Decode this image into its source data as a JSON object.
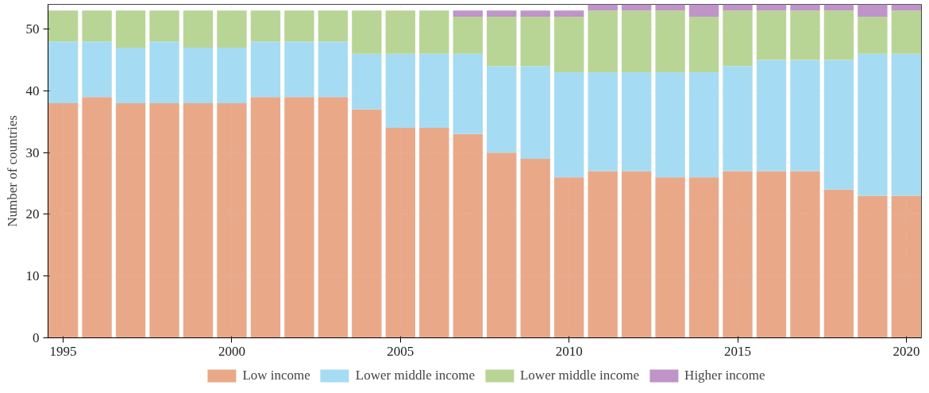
{
  "chart_data": {
    "type": "bar",
    "stacked": true,
    "ylabel": "Number of countries",
    "x": [
      1995,
      1996,
      1997,
      1998,
      1999,
      2000,
      2001,
      2002,
      2003,
      2004,
      2005,
      2006,
      2007,
      2008,
      2009,
      2010,
      2011,
      2012,
      2013,
      2014,
      2015,
      2016,
      2017,
      2018,
      2019,
      2020
    ],
    "series": [
      {
        "name": "Low income",
        "color": "#e9a989",
        "values": [
          38,
          39,
          38,
          38,
          38,
          38,
          39,
          39,
          39,
          37,
          34,
          34,
          33,
          30,
          29,
          26,
          27,
          27,
          26,
          26,
          27,
          27,
          27,
          24,
          23,
          23
        ]
      },
      {
        "name": "Lower middle income",
        "color": "#a6dcf3",
        "values": [
          10,
          9,
          9,
          10,
          9,
          9,
          9,
          9,
          9,
          9,
          12,
          12,
          13,
          14,
          15,
          17,
          16,
          16,
          17,
          17,
          17,
          18,
          18,
          21,
          23,
          23
        ]
      },
      {
        "name": "Lower middle income",
        "color": "#b9d595",
        "values": [
          5,
          5,
          6,
          5,
          6,
          6,
          5,
          5,
          5,
          7,
          7,
          7,
          6,
          8,
          8,
          9,
          10,
          10,
          10,
          9,
          9,
          8,
          8,
          8,
          6,
          7
        ]
      },
      {
        "name": "Higher income",
        "color": "#bf94c9",
        "values": [
          0,
          0,
          0,
          0,
          0,
          0,
          0,
          0,
          0,
          0,
          0,
          0,
          1,
          1,
          1,
          1,
          1,
          1,
          1,
          2,
          1,
          1,
          1,
          1,
          2,
          1
        ]
      }
    ],
    "xlim": [
      1994.55,
      2020.45
    ],
    "xticks": [
      1995,
      2000,
      2005,
      2010,
      2015,
      2020
    ],
    "ylim": [
      0,
      54
    ],
    "yticks": [
      0,
      10,
      20,
      30,
      40,
      50
    ],
    "grid": true,
    "legend": "bottom"
  }
}
